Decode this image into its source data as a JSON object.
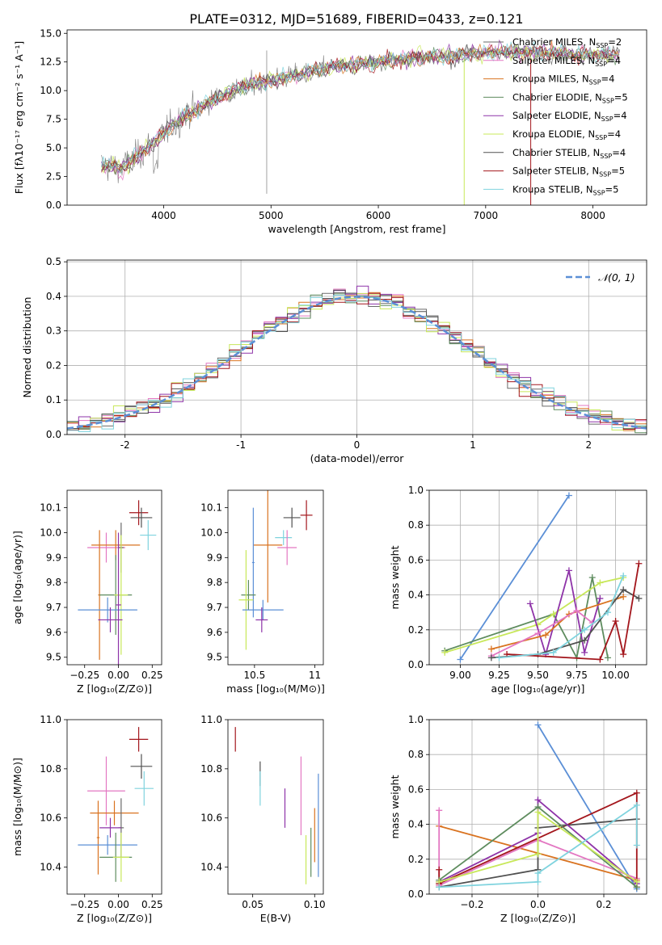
{
  "title": "PLATE=0312, MJD=51689, FIBERID=0433, z=0.121",
  "colors": {
    "Chabrier MILES": "#6a6a6a",
    "Salpeter MILES": "#e377c2",
    "Kroupa MILES": "#d97320",
    "Chabrier ELODIE": "#5e8c5e",
    "Salpeter ELODIE": "#8e33a8",
    "Kroupa ELODIE": "#c8e85a",
    "Chabrier STELIB": "#505050",
    "Salpeter STELIB": "#a3161c",
    "Kroupa STELIB": "#7fd3de",
    "gauss": "#5b8fd6"
  },
  "chart_data": [
    {
      "type": "line",
      "id": "spectrum",
      "xlabel": "wavelength [Angstrom, rest frame]",
      "ylabel": "Flux [fλ10⁻¹⁷ erg cm⁻² s⁻¹ A⁻¹]",
      "xlim": [
        3100,
        8500
      ],
      "ylim": [
        0,
        15.3
      ],
      "xticks": [
        4000,
        5000,
        6000,
        7000,
        8000
      ],
      "yticks": [
        0.0,
        2.5,
        5.0,
        7.5,
        10.0,
        12.5,
        15.0
      ],
      "legend_loc": "right",
      "continuum": {
        "x": [
          3420,
          3600,
          3800,
          4000,
          4200,
          4400,
          4600,
          4800,
          5000,
          5200,
          5400,
          5600,
          5800,
          6000,
          6200,
          6400,
          6600,
          6800,
          7000,
          7200,
          7400,
          7600,
          7800,
          8000,
          8250
        ],
        "y": [
          3.5,
          3.2,
          4.6,
          6.3,
          7.8,
          8.9,
          9.8,
          10.5,
          10.9,
          11.3,
          11.7,
          12.1,
          12.3,
          12.5,
          12.7,
          12.9,
          13.0,
          13.2,
          13.3,
          13.4,
          13.4,
          13.3,
          13.2,
          13.1,
          13.1
        ]
      },
      "series": [
        {
          "name": "Chabrier MILES, N<sub>SSP</sub>=2",
          "key": "Chabrier MILES"
        },
        {
          "name": "Salpeter MILES, N<sub>SSP</sub>=4",
          "key": "Salpeter MILES"
        },
        {
          "name": "Kroupa MILES, N<sub>SSP</sub>=4",
          "key": "Kroupa MILES"
        },
        {
          "name": "Chabrier ELODIE, N<sub>SSP</sub>=5",
          "key": "Chabrier ELODIE"
        },
        {
          "name": "Salpeter ELODIE, N<sub>SSP</sub>=4",
          "key": "Salpeter ELODIE"
        },
        {
          "name": "Kroupa ELODIE, N<sub>SSP</sub>=4",
          "key": "Kroupa ELODIE"
        },
        {
          "name": "Chabrier STELIB, N<sub>SSP</sub>=4",
          "key": "Chabrier STELIB"
        },
        {
          "name": "Salpeter STELIB, N<sub>SSP</sub>=5",
          "key": "Salpeter STELIB"
        },
        {
          "name": "Kroupa STELIB, N<sub>SSP</sub>=5",
          "key": "Kroupa STELIB"
        }
      ],
      "dips": [
        {
          "x": 6800,
          "key": "Kroupa ELODIE"
        },
        {
          "x": 7420,
          "key": "Salpeter STELIB"
        }
      ]
    },
    {
      "type": "histogram",
      "id": "residuals",
      "xlabel": "(data-model)/error",
      "ylabel": "Normed distribution",
      "xlim": [
        -2.5,
        2.5
      ],
      "ylim": [
        0,
        0.505
      ],
      "xticks": [
        -2,
        -1,
        0,
        1,
        2
      ],
      "yticks": [
        0.0,
        0.1,
        0.2,
        0.3,
        0.4,
        0.5
      ],
      "grid": true,
      "legend": "𝒩(0, 1)",
      "legend_loc": "top-right",
      "bin_width": 0.1
    },
    {
      "type": "errorbar",
      "id": "age-vs-Z",
      "xlabel": "Z [log₁₀(Z/Z⊙)]",
      "ylabel": "age  [log₁₀(age/yr)]",
      "xlim": [
        -0.38,
        0.32
      ],
      "ylim": [
        9.47,
        10.17
      ],
      "xticks": [
        -0.25,
        0.0,
        0.25
      ],
      "xticklabels": [
        "−0.25",
        "0.00",
        "0.25"
      ],
      "yticks": [
        9.5,
        9.6,
        9.7,
        9.8,
        9.9,
        10.0,
        10.1
      ],
      "points": [
        {
          "key": "Salpeter STELIB",
          "x": 0.15,
          "xe": 0.07,
          "y": 10.08,
          "ye": 0.05
        },
        {
          "key": "Chabrier STELIB",
          "x": 0.17,
          "xe": 0.08,
          "y": 10.06,
          "ye": 0.04
        },
        {
          "key": "Kroupa STELIB",
          "x": 0.22,
          "xe": 0.06,
          "y": 9.99,
          "ye": 0.06
        },
        {
          "key": "Salpeter MILES",
          "x": -0.09,
          "xe": 0.14,
          "y": 9.94,
          "ye": 0.06
        },
        {
          "key": "Kroupa MILES",
          "x": -0.02,
          "xe": 0.18,
          "y": 9.95,
          "ye": 0.06
        },
        {
          "key": "Kroupa MILES",
          "x": -0.14,
          "xe": 0.01,
          "y": 9.75,
          "ye": 0.26
        },
        {
          "key": "Chabrier MILES",
          "x": 0.02,
          "xe": 0.02,
          "y": 9.94,
          "ye": 0.1
        },
        {
          "key": "Chabrier ELODIE",
          "x": -0.02,
          "xe": 0.12,
          "y": 9.75,
          "ye": 0.16
        },
        {
          "key": "Kroupa ELODIE",
          "x": 0.02,
          "xe": 0.05,
          "y": 9.75,
          "ye": 0.24
        },
        {
          "key": "gauss",
          "x": -0.08,
          "xe": 0.22,
          "y": 9.69,
          "ye": 0.05
        },
        {
          "key": "Salpeter ELODIE",
          "x": -0.06,
          "xe": 0.09,
          "y": 9.65,
          "ye": 0.05
        },
        {
          "key": "Salpeter ELODIE",
          "x": 0.0,
          "xe": 0.02,
          "y": 9.71,
          "ye": 0.29
        }
      ]
    },
    {
      "type": "errorbar",
      "id": "age-vs-mass",
      "xlabel": "mass [log₁₀(M/M⊙)]",
      "ylabel": "",
      "xlim": [
        10.28,
        11.07
      ],
      "ylim": [
        9.47,
        10.17
      ],
      "xticks": [
        10.5,
        11.0
      ],
      "yticks": [
        9.5,
        9.6,
        9.7,
        9.8,
        9.9,
        10.0,
        10.1
      ],
      "points": [
        {
          "key": "Salpeter STELIB",
          "x": 10.93,
          "xe": 0.05,
          "y": 10.07,
          "ye": 0.06
        },
        {
          "key": "Chabrier STELIB",
          "x": 10.81,
          "xe": 0.07,
          "y": 10.06,
          "ye": 0.04
        },
        {
          "key": "Kroupa STELIB",
          "x": 10.74,
          "xe": 0.07,
          "y": 9.98,
          "ye": 0.03
        },
        {
          "key": "Salpeter MILES",
          "x": 10.77,
          "xe": 0.08,
          "y": 9.94,
          "ye": 0.07
        },
        {
          "key": "Kroupa MILES",
          "x": 10.61,
          "xe": 0.12,
          "y": 9.95,
          "ye": 0.23
        },
        {
          "key": "gauss",
          "x": 10.49,
          "xe": 0.01,
          "y": 9.88,
          "ye": 0.22
        },
        {
          "key": "Chabrier ELODIE",
          "x": 10.45,
          "xe": 0.06,
          "y": 9.75,
          "ye": 0.06
        },
        {
          "key": "Kroupa ELODIE",
          "x": 10.43,
          "xe": 0.06,
          "y": 9.73,
          "ye": 0.2
        },
        {
          "key": "gauss",
          "x": 10.57,
          "xe": 0.17,
          "y": 9.69,
          "ye": 0.04
        },
        {
          "key": "Salpeter ELODIE",
          "x": 10.56,
          "xe": 0.05,
          "y": 9.65,
          "ye": 0.05
        }
      ]
    },
    {
      "type": "line",
      "id": "mass-weight-vs-age",
      "xlabel": "age  [log₁₀(age/yr)]",
      "ylabel": "mass weight",
      "xlim": [
        8.8,
        10.2
      ],
      "ylim": [
        0,
        1.0
      ],
      "xticks": [
        9.0,
        9.25,
        9.5,
        9.75,
        10.0
      ],
      "xticklabels": [
        "9.00",
        "9.25",
        "9.50",
        "9.75",
        "10.00"
      ],
      "yticks": [
        0.0,
        0.2,
        0.4,
        0.6,
        0.8,
        1.0
      ],
      "grid": true,
      "series": [
        {
          "key": "gauss",
          "x": [
            9.0,
            9.7
          ],
          "y": [
            0.03,
            0.97
          ]
        },
        {
          "key": "Chabrier ELODIE",
          "x": [
            8.9,
            9.6,
            9.75,
            9.85,
            9.95
          ],
          "y": [
            0.08,
            0.29,
            0.04,
            0.5,
            0.04
          ]
        },
        {
          "key": "Kroupa ELODIE",
          "x": [
            8.9,
            9.5,
            9.6,
            9.9,
            10.05
          ],
          "y": [
            0.07,
            0.23,
            0.29,
            0.47,
            0.5
          ]
        },
        {
          "key": "Salpeter ELODIE",
          "x": [
            9.45,
            9.55,
            9.7,
            9.8,
            9.9
          ],
          "y": [
            0.35,
            0.06,
            0.54,
            0.07,
            0.38
          ]
        },
        {
          "key": "Kroupa MILES",
          "x": [
            9.2,
            9.55,
            9.7,
            10.05
          ],
          "y": [
            0.09,
            0.17,
            0.29,
            0.39
          ]
        },
        {
          "key": "Salpeter MILES",
          "x": [
            9.2,
            9.5,
            9.75,
            9.85
          ],
          "y": [
            0.05,
            0.18,
            0.31,
            0.24
          ]
        },
        {
          "key": "Chabrier STELIB",
          "x": [
            9.2,
            9.5,
            9.8,
            10.05,
            10.15
          ],
          "y": [
            0.04,
            0.06,
            0.14,
            0.43,
            0.38
          ]
        },
        {
          "key": "Salpeter STELIB",
          "x": [
            9.3,
            9.9,
            10.0,
            10.05,
            10.15
          ],
          "y": [
            0.06,
            0.03,
            0.25,
            0.06,
            0.58
          ]
        },
        {
          "key": "Kroupa STELIB",
          "x": [
            9.25,
            9.6,
            9.8,
            9.95,
            10.05
          ],
          "y": [
            0.04,
            0.07,
            0.2,
            0.3,
            0.51
          ]
        }
      ]
    },
    {
      "type": "errorbar",
      "id": "mass-vs-Z",
      "xlabel": "Z [log₁₀(Z/Z⊙)]",
      "ylabel": "mass [log₁₀(M/M⊙)]",
      "xlim": [
        -0.38,
        0.32
      ],
      "ylim": [
        10.29,
        11.0
      ],
      "xticks": [
        -0.25,
        0.0,
        0.25
      ],
      "xticklabels": [
        "−0.25",
        "0.00",
        "0.25"
      ],
      "yticks": [
        10.4,
        10.6,
        10.8,
        11.0
      ],
      "points": [
        {
          "key": "Salpeter STELIB",
          "x": 0.15,
          "xe": 0.07,
          "y": 10.92,
          "ye": 0.05
        },
        {
          "key": "Chabrier STELIB",
          "x": 0.17,
          "xe": 0.08,
          "y": 10.81,
          "ye": 0.05
        },
        {
          "key": "Kroupa STELIB",
          "x": 0.19,
          "xe": 0.07,
          "y": 10.72,
          "ye": 0.07
        },
        {
          "key": "Salpeter MILES",
          "x": -0.09,
          "xe": 0.14,
          "y": 10.71,
          "ye": 0.14
        },
        {
          "key": "Kroupa MILES",
          "x": -0.03,
          "xe": 0.18,
          "y": 10.62,
          "ye": 0.05
        },
        {
          "key": "Kroupa MILES",
          "x": -0.15,
          "xe": 0.01,
          "y": 10.52,
          "ye": 0.15
        },
        {
          "key": "Chabrier MILES",
          "x": 0.02,
          "xe": 0.02,
          "y": 10.56,
          "ye": 0.12
        },
        {
          "key": "Salpeter ELODIE",
          "x": -0.06,
          "xe": 0.08,
          "y": 10.56,
          "ye": 0.04
        },
        {
          "key": "gauss",
          "x": -0.08,
          "xe": 0.22,
          "y": 10.49,
          "ye": 0.04
        },
        {
          "key": "Chabrier ELODIE",
          "x": -0.02,
          "xe": 0.12,
          "y": 10.44,
          "ye": 0.1
        },
        {
          "key": "Kroupa ELODIE",
          "x": 0.02,
          "xe": 0.06,
          "y": 10.44,
          "ye": 0.1
        }
      ]
    },
    {
      "type": "errorbar",
      "id": "mass-vs-EBV",
      "xlabel": "E(B-V)",
      "ylabel": "",
      "xlim": [
        0.03,
        0.107
      ],
      "ylim": [
        10.29,
        11.0
      ],
      "xticks": [
        0.05,
        0.1
      ],
      "xticklabels": [
        "0.05",
        "0.10"
      ],
      "yticks": [
        10.4,
        10.6,
        10.8,
        11.0
      ],
      "points": [
        {
          "key": "Salpeter STELIB",
          "x": 0.036,
          "xe": 0,
          "y": 10.92,
          "ye": 0.05
        },
        {
          "key": "Chabrier STELIB",
          "x": 0.056,
          "xe": 0,
          "y": 10.78,
          "ye": 0.05
        },
        {
          "key": "Kroupa STELIB",
          "x": 0.056,
          "xe": 0,
          "y": 10.72,
          "ye": 0.07
        },
        {
          "key": "Salpeter ELODIE",
          "x": 0.076,
          "xe": 0,
          "y": 10.64,
          "ye": 0.08
        },
        {
          "key": "Salpeter MILES",
          "x": 0.089,
          "xe": 0,
          "y": 10.69,
          "ye": 0.16
        },
        {
          "key": "Kroupa ELODIE",
          "x": 0.093,
          "xe": 0,
          "y": 10.43,
          "ye": 0.1
        },
        {
          "key": "Chabrier ELODIE",
          "x": 0.097,
          "xe": 0,
          "y": 10.46,
          "ye": 0.1
        },
        {
          "key": "Kroupa MILES",
          "x": 0.1,
          "xe": 0,
          "y": 10.53,
          "ye": 0.11
        },
        {
          "key": "gauss",
          "x": 0.103,
          "xe": 0,
          "y": 10.57,
          "ye": 0.21
        }
      ]
    },
    {
      "type": "line",
      "id": "mass-weight-vs-Z",
      "xlabel": "Z [log₁₀(Z/Z⊙)]",
      "ylabel": "mass weight",
      "xlim": [
        -0.33,
        0.33
      ],
      "ylim": [
        0,
        1.0
      ],
      "xticks": [
        -0.2,
        0.0,
        0.2
      ],
      "xticklabels": [
        "−0.2",
        "0.0",
        "0.2"
      ],
      "yticks": [
        0.0,
        0.2,
        0.4,
        0.6,
        0.8,
        1.0
      ],
      "grid": true,
      "series": [
        {
          "key": "gauss",
          "x": [
            0.0,
            0.3
          ],
          "y": [
            0.97,
            0.03
          ]
        },
        {
          "key": "Kroupa MILES",
          "x": [
            -0.3,
            0.3
          ],
          "y": [
            0.39,
            0.08
          ]
        },
        {
          "key": "Salpeter MILES",
          "x": [
            -0.3,
            -0.3,
            0.0,
            0.3
          ],
          "y": [
            0.48,
            0.05,
            0.31,
            0.09
          ]
        },
        {
          "key": "Salpeter STELIB",
          "x": [
            -0.3,
            -0.3,
            0.3,
            0.3
          ],
          "y": [
            0.14,
            0.06,
            0.58,
            0.04
          ]
        },
        {
          "key": "Chabrier STELIB",
          "x": [
            -0.3,
            0.0,
            0.0,
            0.3
          ],
          "y": [
            0.04,
            0.14,
            0.38,
            0.43
          ]
        },
        {
          "key": "Salpeter ELODIE",
          "x": [
            -0.3,
            0.0,
            0.0,
            0.3
          ],
          "y": [
            0.07,
            0.35,
            0.54,
            0.06
          ]
        },
        {
          "key": "Chabrier ELODIE",
          "x": [
            -0.3,
            0.0,
            0.3
          ],
          "y": [
            0.08,
            0.5,
            0.04
          ]
        },
        {
          "key": "Kroupa ELODIE",
          "x": [
            -0.3,
            0.0,
            0.0,
            0.3
          ],
          "y": [
            0.07,
            0.23,
            0.47,
            0.07
          ]
        },
        {
          "key": "Kroupa STELIB",
          "x": [
            -0.3,
            0.0,
            0.0,
            0.3,
            0.3
          ],
          "y": [
            0.04,
            0.07,
            0.12,
            0.51,
            0.28
          ]
        }
      ]
    }
  ]
}
